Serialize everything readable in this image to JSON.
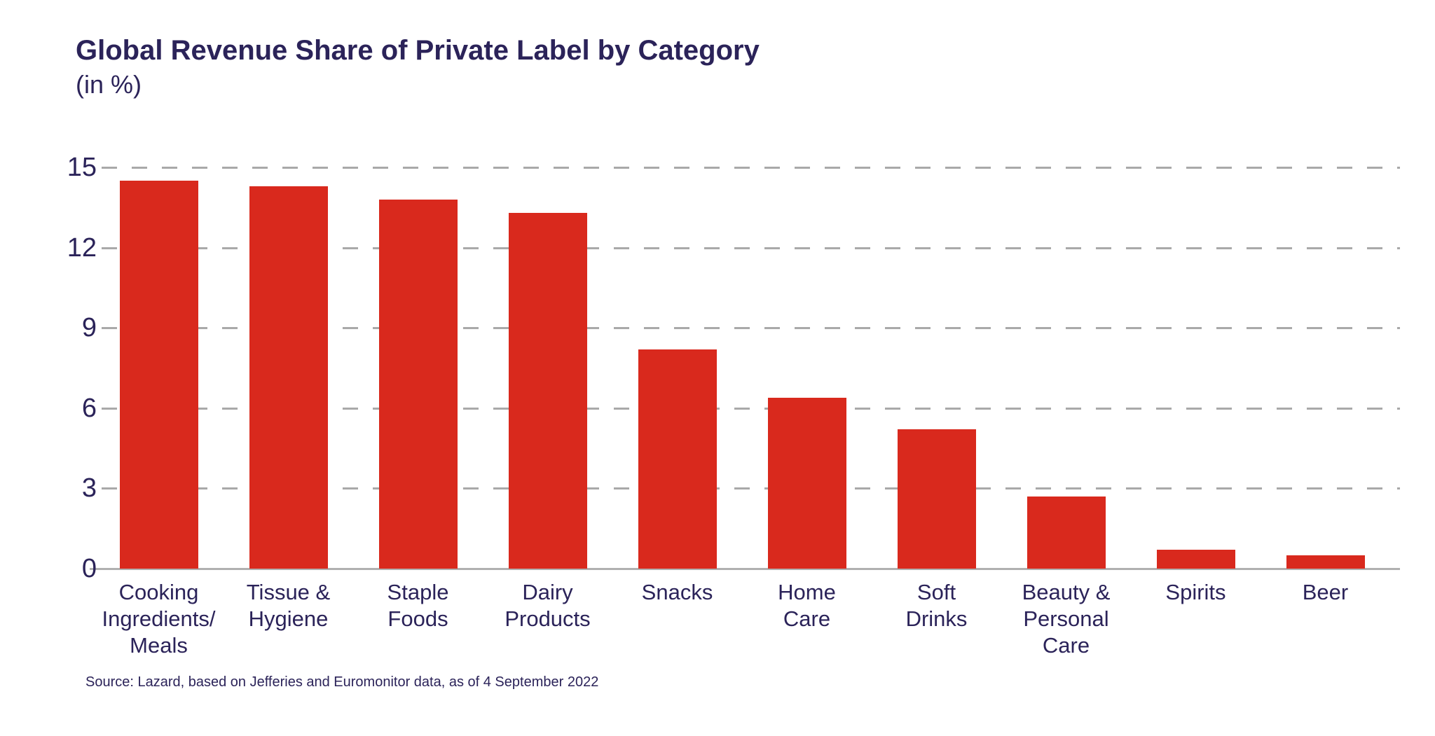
{
  "header": {
    "title": "Global Revenue Share of Private Label by Category",
    "subtitle": "(in %)"
  },
  "footer": {
    "source": "Source: Lazard, based on Jefferies and Euromonitor data, as of 4 September 2022"
  },
  "colors": {
    "bar": "#d9291d",
    "text": "#2b2359",
    "gridline": "#a9a9a9",
    "baseline": "#b0b0b0"
  },
  "chart_data": {
    "type": "bar",
    "title": "Global Revenue Share of Private Label by Category",
    "subtitle": "(in %)",
    "categories": [
      "Cooking\nIngredients/\nMeals",
      "Tissue &\nHygiene",
      "Staple\nFoods",
      "Dairy\nProducts",
      "Snacks",
      "Home\nCare",
      "Soft\nDrinks",
      "Beauty &\nPersonal\nCare",
      "Spirits",
      "Beer"
    ],
    "values": [
      14.5,
      14.3,
      13.8,
      13.3,
      8.2,
      6.4,
      5.2,
      2.7,
      0.7,
      0.5
    ],
    "xlabel": "",
    "ylabel": "",
    "ylim": [
      0,
      15
    ],
    "yticks": [
      0,
      3,
      6,
      9,
      12,
      15
    ],
    "grid": "horizontal-dashed",
    "legend": "none",
    "bar_color": "#d9291d",
    "source": "Source: Lazard, based on Jefferies and Euromonitor data, as of 4 September 2022"
  }
}
